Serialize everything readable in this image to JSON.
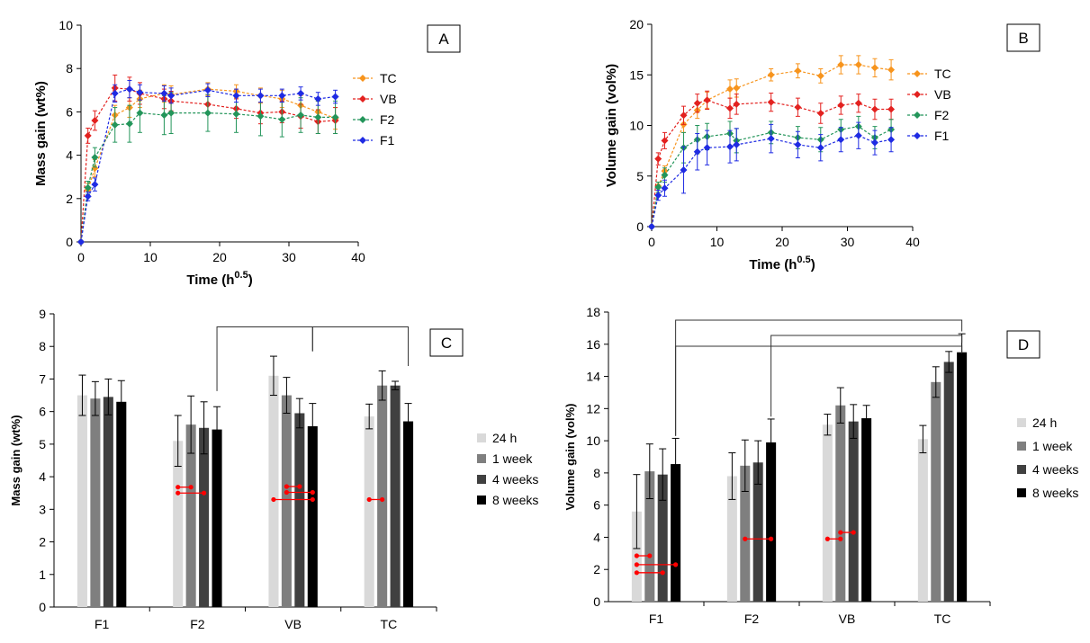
{
  "chart_data": [
    {
      "type": "line",
      "panel": "A",
      "xlabel": "Time (h",
      "xlabel_sup": "0.5",
      "ylabel": "Mass gain (wt%)",
      "xlim": [
        0,
        40
      ],
      "ylim": [
        0,
        10
      ],
      "xticks": [
        0,
        10,
        20,
        30,
        40
      ],
      "yticks": [
        0,
        2,
        4,
        6,
        8,
        10
      ],
      "legend_position": "right",
      "series": [
        {
          "name": "TC",
          "color": "#F7941D",
          "x": [
            0,
            1,
            2,
            4.9,
            7,
            8.5,
            12,
            13,
            18.3,
            22.4,
            25.9,
            29,
            31.7,
            34.2,
            36.7
          ],
          "y": [
            0,
            2.4,
            3.4,
            5.85,
            6.2,
            6.6,
            6.85,
            6.8,
            7.05,
            6.95,
            6.75,
            6.6,
            6.3,
            6.0,
            5.7
          ],
          "err": [
            0,
            0.3,
            0.4,
            0.45,
            0.45,
            0.4,
            0.4,
            0.4,
            0.3,
            0.3,
            0.35,
            0.4,
            0.45,
            0.5,
            0.5
          ]
        },
        {
          "name": "VB",
          "color": "#E3211F",
          "x": [
            0,
            1,
            2,
            4.9,
            7,
            8.5,
            12,
            13,
            18.3,
            22.4,
            25.9,
            29,
            31.7,
            34.2,
            36.7
          ],
          "y": [
            0,
            4.9,
            5.6,
            7.1,
            7.05,
            6.85,
            6.6,
            6.5,
            6.35,
            6.15,
            5.95,
            6.0,
            5.8,
            5.55,
            5.6
          ],
          "err": [
            0,
            0.35,
            0.45,
            0.6,
            0.55,
            0.5,
            0.45,
            0.45,
            0.45,
            0.45,
            0.5,
            0.5,
            0.55,
            0.55,
            0.6
          ]
        },
        {
          "name": "F2",
          "color": "#23955A",
          "x": [
            0,
            1,
            2,
            4.9,
            7,
            8.5,
            12,
            13,
            18.3,
            22.4,
            25.9,
            29,
            31.7,
            34.2,
            36.7
          ],
          "y": [
            0,
            2.5,
            3.9,
            5.4,
            5.45,
            5.95,
            5.85,
            5.95,
            5.95,
            5.9,
            5.8,
            5.65,
            5.85,
            5.75,
            5.75
          ],
          "err": [
            0,
            0.3,
            0.45,
            0.8,
            0.85,
            0.9,
            0.9,
            0.95,
            0.85,
            0.85,
            0.9,
            0.8,
            0.8,
            0.75,
            0.75
          ]
        },
        {
          "name": "F1",
          "color": "#1F2BE3",
          "x": [
            0,
            1,
            2,
            4.9,
            7,
            8.5,
            12,
            13,
            18.3,
            22.4,
            25.9,
            29,
            31.7,
            34.2,
            36.7
          ],
          "y": [
            0,
            2.1,
            2.65,
            6.85,
            7.05,
            6.9,
            6.85,
            6.75,
            7.0,
            6.75,
            6.75,
            6.75,
            6.85,
            6.6,
            6.7
          ],
          "err": [
            0,
            0.2,
            0.3,
            0.4,
            0.4,
            0.35,
            0.35,
            0.35,
            0.3,
            0.3,
            0.3,
            0.3,
            0.3,
            0.3,
            0.3
          ]
        }
      ]
    },
    {
      "type": "line",
      "panel": "B",
      "xlabel": "Time (h",
      "xlabel_sup": "0.5",
      "ylabel": "Volume gain (vol%)",
      "xlim": [
        0,
        40
      ],
      "ylim": [
        0,
        20
      ],
      "xticks": [
        0,
        10,
        20,
        30,
        40
      ],
      "yticks": [
        0,
        5,
        10,
        15,
        20
      ],
      "legend_position": "right",
      "series": [
        {
          "name": "TC",
          "color": "#F7941D",
          "x": [
            0,
            1,
            2,
            4.9,
            7,
            8.5,
            12,
            13,
            18.3,
            22.4,
            25.9,
            29,
            31.7,
            34.2,
            36.7
          ],
          "y": [
            0,
            4.0,
            5.5,
            10.1,
            11.5,
            12.5,
            13.6,
            13.7,
            15.0,
            15.4,
            14.9,
            16.0,
            16.0,
            15.7,
            15.5
          ],
          "err": [
            0,
            0.4,
            0.5,
            0.8,
            0.8,
            0.8,
            0.9,
            0.9,
            0.6,
            0.7,
            0.7,
            0.9,
            0.9,
            0.9,
            1.0
          ]
        },
        {
          "name": "VB",
          "color": "#E3211F",
          "x": [
            0,
            1,
            2,
            4.9,
            7,
            8.5,
            12,
            13,
            18.3,
            22.4,
            25.9,
            29,
            31.7,
            34.2,
            36.7
          ],
          "y": [
            0,
            6.7,
            8.5,
            11.0,
            12.2,
            12.5,
            11.7,
            12.1,
            12.3,
            11.8,
            11.2,
            12.0,
            12.2,
            11.6,
            11.6
          ],
          "err": [
            0,
            0.6,
            0.8,
            0.9,
            0.9,
            0.9,
            1.0,
            1.0,
            0.9,
            0.9,
            1.0,
            0.9,
            0.9,
            1.0,
            1.0
          ]
        },
        {
          "name": "F2",
          "color": "#23955A",
          "x": [
            0,
            1,
            2,
            4.9,
            7,
            8.5,
            12,
            13,
            18.3,
            22.4,
            25.9,
            29,
            31.7,
            34.2,
            36.7
          ],
          "y": [
            0,
            3.9,
            5.1,
            7.8,
            8.6,
            8.9,
            9.2,
            8.5,
            9.3,
            8.8,
            8.6,
            9.6,
            9.9,
            8.8,
            9.6
          ],
          "err": [
            0,
            0.5,
            0.7,
            1.5,
            1.4,
            1.3,
            1.2,
            1.2,
            1.1,
            1.1,
            1.2,
            1.0,
            1.0,
            1.1,
            1.0
          ]
        },
        {
          "name": "F1",
          "color": "#1F2BE3",
          "x": [
            0,
            1,
            2,
            4.9,
            7,
            8.5,
            12,
            13,
            18.3,
            22.4,
            25.9,
            29,
            31.7,
            34.2,
            36.7
          ],
          "y": [
            0,
            3.1,
            3.8,
            5.6,
            7.4,
            7.8,
            7.9,
            8.1,
            8.7,
            8.1,
            7.8,
            8.6,
            9.0,
            8.3,
            8.6
          ],
          "err": [
            0,
            0.5,
            0.8,
            2.3,
            1.8,
            1.7,
            1.6,
            1.6,
            1.4,
            1.3,
            1.3,
            1.2,
            1.3,
            1.2,
            1.2
          ]
        }
      ]
    },
    {
      "type": "bar",
      "panel": "C",
      "ylabel": "Mass gain (wt%)",
      "ylim": [
        0,
        9
      ],
      "yticks": [
        0,
        1,
        2,
        3,
        4,
        5,
        6,
        7,
        8,
        9
      ],
      "categories": [
        "F1",
        "F2",
        "VB",
        "TC"
      ],
      "legend_position": "right",
      "series": [
        {
          "name": "24 h",
          "color": "#D9D9D9",
          "values": [
            6.5,
            5.1,
            7.1,
            5.85
          ],
          "err": [
            0.62,
            0.78,
            0.6,
            0.38
          ]
        },
        {
          "name": "1 week",
          "color": "#7F7F7F",
          "values": [
            6.4,
            5.6,
            6.5,
            6.8
          ],
          "err": [
            0.52,
            0.88,
            0.55,
            0.45
          ]
        },
        {
          "name": "4 weeks",
          "color": "#404040",
          "values": [
            6.45,
            5.5,
            5.95,
            6.8
          ],
          "err": [
            0.55,
            0.8,
            0.45,
            0.13
          ]
        },
        {
          "name": "8 weeks",
          "color": "#000000",
          "values": [
            6.3,
            5.45,
            5.55,
            5.7
          ],
          "err": [
            0.65,
            0.7,
            0.7,
            0.55
          ]
        }
      ],
      "significance_brackets": [
        {
          "from": "F2",
          "to": "VB"
        },
        {
          "from": "VB",
          "to": "TC"
        }
      ],
      "intra_group_markers": [
        {
          "group": "F2",
          "from": "24 h",
          "to": "1 week",
          "y": 3.68
        },
        {
          "group": "F2",
          "from": "24 h",
          "to": "4 weeks",
          "y": 3.5
        },
        {
          "group": "VB",
          "from": "1 week",
          "to": "4 weeks",
          "y": 3.7
        },
        {
          "group": "VB",
          "from": "1 week",
          "to": "8 weeks",
          "y": 3.52
        },
        {
          "group": "VB",
          "from": "24 h",
          "to": "8 weeks",
          "y": 3.3
        },
        {
          "group": "TC",
          "from": "24 h",
          "to": "1 week",
          "y": 3.3
        }
      ]
    },
    {
      "type": "bar",
      "panel": "D",
      "ylabel": "Volume gain (vol%)",
      "ylim": [
        0,
        18
      ],
      "yticks": [
        0,
        2,
        4,
        6,
        8,
        10,
        12,
        14,
        16,
        18
      ],
      "categories": [
        "F1",
        "F2",
        "VB",
        "TC"
      ],
      "legend_position": "right",
      "series": [
        {
          "name": "24 h",
          "color": "#D9D9D9",
          "values": [
            5.6,
            7.8,
            11.0,
            10.1
          ],
          "err": [
            2.3,
            1.45,
            0.65,
            0.85
          ]
        },
        {
          "name": "1 week",
          "color": "#7F7F7F",
          "values": [
            8.1,
            8.45,
            12.2,
            13.65
          ],
          "err": [
            1.7,
            1.6,
            1.1,
            0.95
          ]
        },
        {
          "name": "4 weeks",
          "color": "#404040",
          "values": [
            7.9,
            8.65,
            11.2,
            14.9
          ],
          "err": [
            1.6,
            1.35,
            1.05,
            0.65
          ]
        },
        {
          "name": "8 weeks",
          "color": "#000000",
          "values": [
            8.55,
            9.9,
            11.4,
            15.5
          ],
          "err": [
            1.6,
            1.45,
            0.8,
            1.15
          ]
        }
      ],
      "significance_brackets": [
        {
          "from": "F1",
          "to": "TC",
          "level": 0
        },
        {
          "from": "F2",
          "to": "TC",
          "level": 1
        },
        {
          "from": "F1",
          "to": "TC",
          "level": 2
        }
      ],
      "intra_group_markers": [
        {
          "group": "F1",
          "from": "24 h",
          "to": "1 week",
          "y": 2.85
        },
        {
          "group": "F1",
          "from": "24 h",
          "to": "8 weeks",
          "y": 2.3
        },
        {
          "group": "F1",
          "from": "24 h",
          "to": "4 weeks",
          "y": 1.8
        },
        {
          "group": "F2",
          "from": "1 week",
          "to": "8 weeks",
          "y": 3.9
        },
        {
          "group": "VB",
          "from": "24 h",
          "to": "1 week",
          "y": 3.9
        },
        {
          "group": "VB",
          "from": "1 week",
          "to": "4 weeks",
          "y": 4.3
        }
      ]
    }
  ]
}
